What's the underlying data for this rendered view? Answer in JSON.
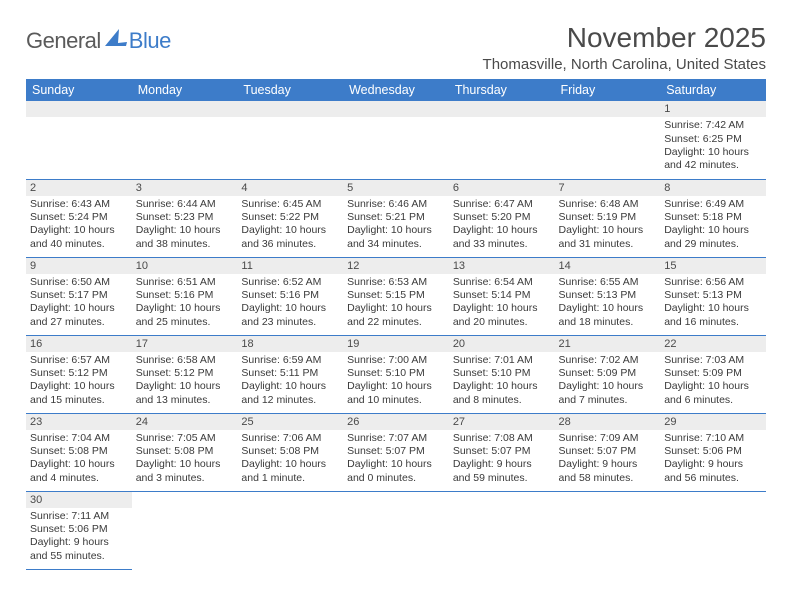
{
  "brand": {
    "part1": "General",
    "part2": "Blue"
  },
  "title": "November 2025",
  "location": "Thomasville, North Carolina, United States",
  "colors": {
    "header_bg": "#3d7cc9",
    "header_text": "#ffffff",
    "strip_bg": "#ededed",
    "border": "#3d7cc9",
    "text": "#3a3a3a"
  },
  "daysOfWeek": [
    "Sunday",
    "Monday",
    "Tuesday",
    "Wednesday",
    "Thursday",
    "Friday",
    "Saturday"
  ],
  "weeks": [
    [
      {
        "empty": true
      },
      {
        "empty": true
      },
      {
        "empty": true
      },
      {
        "empty": true
      },
      {
        "empty": true
      },
      {
        "empty": true
      },
      {
        "n": "1",
        "sr": "Sunrise: 7:42 AM",
        "ss": "Sunset: 6:25 PM",
        "d1": "Daylight: 10 hours",
        "d2": "and 42 minutes."
      }
    ],
    [
      {
        "n": "2",
        "sr": "Sunrise: 6:43 AM",
        "ss": "Sunset: 5:24 PM",
        "d1": "Daylight: 10 hours",
        "d2": "and 40 minutes."
      },
      {
        "n": "3",
        "sr": "Sunrise: 6:44 AM",
        "ss": "Sunset: 5:23 PM",
        "d1": "Daylight: 10 hours",
        "d2": "and 38 minutes."
      },
      {
        "n": "4",
        "sr": "Sunrise: 6:45 AM",
        "ss": "Sunset: 5:22 PM",
        "d1": "Daylight: 10 hours",
        "d2": "and 36 minutes."
      },
      {
        "n": "5",
        "sr": "Sunrise: 6:46 AM",
        "ss": "Sunset: 5:21 PM",
        "d1": "Daylight: 10 hours",
        "d2": "and 34 minutes."
      },
      {
        "n": "6",
        "sr": "Sunrise: 6:47 AM",
        "ss": "Sunset: 5:20 PM",
        "d1": "Daylight: 10 hours",
        "d2": "and 33 minutes."
      },
      {
        "n": "7",
        "sr": "Sunrise: 6:48 AM",
        "ss": "Sunset: 5:19 PM",
        "d1": "Daylight: 10 hours",
        "d2": "and 31 minutes."
      },
      {
        "n": "8",
        "sr": "Sunrise: 6:49 AM",
        "ss": "Sunset: 5:18 PM",
        "d1": "Daylight: 10 hours",
        "d2": "and 29 minutes."
      }
    ],
    [
      {
        "n": "9",
        "sr": "Sunrise: 6:50 AM",
        "ss": "Sunset: 5:17 PM",
        "d1": "Daylight: 10 hours",
        "d2": "and 27 minutes."
      },
      {
        "n": "10",
        "sr": "Sunrise: 6:51 AM",
        "ss": "Sunset: 5:16 PM",
        "d1": "Daylight: 10 hours",
        "d2": "and 25 minutes."
      },
      {
        "n": "11",
        "sr": "Sunrise: 6:52 AM",
        "ss": "Sunset: 5:16 PM",
        "d1": "Daylight: 10 hours",
        "d2": "and 23 minutes."
      },
      {
        "n": "12",
        "sr": "Sunrise: 6:53 AM",
        "ss": "Sunset: 5:15 PM",
        "d1": "Daylight: 10 hours",
        "d2": "and 22 minutes."
      },
      {
        "n": "13",
        "sr": "Sunrise: 6:54 AM",
        "ss": "Sunset: 5:14 PM",
        "d1": "Daylight: 10 hours",
        "d2": "and 20 minutes."
      },
      {
        "n": "14",
        "sr": "Sunrise: 6:55 AM",
        "ss": "Sunset: 5:13 PM",
        "d1": "Daylight: 10 hours",
        "d2": "and 18 minutes."
      },
      {
        "n": "15",
        "sr": "Sunrise: 6:56 AM",
        "ss": "Sunset: 5:13 PM",
        "d1": "Daylight: 10 hours",
        "d2": "and 16 minutes."
      }
    ],
    [
      {
        "n": "16",
        "sr": "Sunrise: 6:57 AM",
        "ss": "Sunset: 5:12 PM",
        "d1": "Daylight: 10 hours",
        "d2": "and 15 minutes."
      },
      {
        "n": "17",
        "sr": "Sunrise: 6:58 AM",
        "ss": "Sunset: 5:12 PM",
        "d1": "Daylight: 10 hours",
        "d2": "and 13 minutes."
      },
      {
        "n": "18",
        "sr": "Sunrise: 6:59 AM",
        "ss": "Sunset: 5:11 PM",
        "d1": "Daylight: 10 hours",
        "d2": "and 12 minutes."
      },
      {
        "n": "19",
        "sr": "Sunrise: 7:00 AM",
        "ss": "Sunset: 5:10 PM",
        "d1": "Daylight: 10 hours",
        "d2": "and 10 minutes."
      },
      {
        "n": "20",
        "sr": "Sunrise: 7:01 AM",
        "ss": "Sunset: 5:10 PM",
        "d1": "Daylight: 10 hours",
        "d2": "and 8 minutes."
      },
      {
        "n": "21",
        "sr": "Sunrise: 7:02 AM",
        "ss": "Sunset: 5:09 PM",
        "d1": "Daylight: 10 hours",
        "d2": "and 7 minutes."
      },
      {
        "n": "22",
        "sr": "Sunrise: 7:03 AM",
        "ss": "Sunset: 5:09 PM",
        "d1": "Daylight: 10 hours",
        "d2": "and 6 minutes."
      }
    ],
    [
      {
        "n": "23",
        "sr": "Sunrise: 7:04 AM",
        "ss": "Sunset: 5:08 PM",
        "d1": "Daylight: 10 hours",
        "d2": "and 4 minutes."
      },
      {
        "n": "24",
        "sr": "Sunrise: 7:05 AM",
        "ss": "Sunset: 5:08 PM",
        "d1": "Daylight: 10 hours",
        "d2": "and 3 minutes."
      },
      {
        "n": "25",
        "sr": "Sunrise: 7:06 AM",
        "ss": "Sunset: 5:08 PM",
        "d1": "Daylight: 10 hours",
        "d2": "and 1 minute."
      },
      {
        "n": "26",
        "sr": "Sunrise: 7:07 AM",
        "ss": "Sunset: 5:07 PM",
        "d1": "Daylight: 10 hours",
        "d2": "and 0 minutes."
      },
      {
        "n": "27",
        "sr": "Sunrise: 7:08 AM",
        "ss": "Sunset: 5:07 PM",
        "d1": "Daylight: 9 hours",
        "d2": "and 59 minutes."
      },
      {
        "n": "28",
        "sr": "Sunrise: 7:09 AM",
        "ss": "Sunset: 5:07 PM",
        "d1": "Daylight: 9 hours",
        "d2": "and 58 minutes."
      },
      {
        "n": "29",
        "sr": "Sunrise: 7:10 AM",
        "ss": "Sunset: 5:06 PM",
        "d1": "Daylight: 9 hours",
        "d2": "and 56 minutes."
      }
    ],
    [
      {
        "n": "30",
        "sr": "Sunrise: 7:11 AM",
        "ss": "Sunset: 5:06 PM",
        "d1": "Daylight: 9 hours",
        "d2": "and 55 minutes."
      },
      {
        "empty": true,
        "noborder": true
      },
      {
        "empty": true,
        "noborder": true
      },
      {
        "empty": true,
        "noborder": true
      },
      {
        "empty": true,
        "noborder": true
      },
      {
        "empty": true,
        "noborder": true
      },
      {
        "empty": true,
        "noborder": true
      }
    ]
  ]
}
